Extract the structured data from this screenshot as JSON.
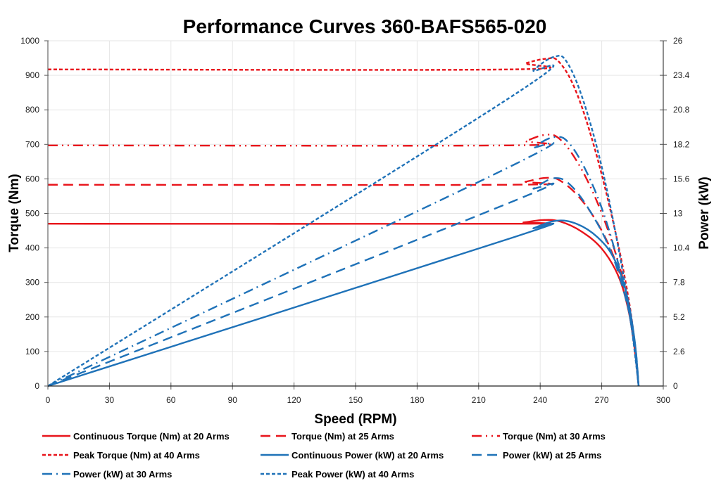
{
  "chart_data": {
    "type": "line",
    "title": "Performance Curves 360-BAFS565-020",
    "xlabel": "Speed (RPM)",
    "ylabel": "Torque (Nm)",
    "y2label": "Power (kW)",
    "xlim": [
      0,
      300
    ],
    "ylim": [
      0,
      1000
    ],
    "y2lim": [
      0,
      26
    ],
    "xticks": [
      "0",
      "30",
      "60",
      "90",
      "120",
      "150",
      "180",
      "210",
      "240",
      "270",
      "300"
    ],
    "yticks": [
      "0",
      "100",
      "200",
      "300",
      "400",
      "500",
      "600",
      "700",
      "800",
      "900",
      "1000"
    ],
    "y2ticks": [
      "0",
      "2.6",
      "5.2",
      "7.8",
      "10.4",
      "13",
      "15.6",
      "18.2",
      "20.8",
      "23.4",
      "26"
    ],
    "grid": true,
    "legend_position": "bottom",
    "series": [
      {
        "name": "Continuous Torque (Nm) at 20 Arms",
        "axis": "left",
        "color": "#e8141b",
        "dash": "solid",
        "x": [
          0,
          225,
          232,
          242,
          250,
          260,
          270,
          278,
          283,
          286,
          288
        ],
        "y": [
          470,
          470,
          474,
          481,
          476,
          448,
          398,
          320,
          220,
          110,
          0
        ]
      },
      {
        "name": "Torque (Nm) at 25 Arms",
        "axis": "left",
        "color": "#e8141b",
        "dash": "longdash",
        "x": [
          0,
          225,
          233,
          243,
          250,
          260,
          270,
          278,
          283,
          286,
          288
        ],
        "y": [
          583,
          583,
          592,
          603,
          594,
          540,
          450,
          340,
          230,
          115,
          0
        ]
      },
      {
        "name": "Torque (Nm) at 30 Arms",
        "axis": "left",
        "color": "#e8141b",
        "dash": "dashdotdot",
        "x": [
          0,
          225,
          233,
          242,
          249,
          258,
          268,
          277,
          283,
          286,
          288
        ],
        "y": [
          697,
          697,
          710,
          727,
          718,
          650,
          530,
          380,
          240,
          120,
          0
        ]
      },
      {
        "name": "Peak Torque (Nm) at 40 Arms",
        "axis": "left",
        "color": "#e8141b",
        "dash": "shortdash",
        "x": [
          0,
          225,
          233,
          243,
          249,
          257,
          266,
          275,
          282,
          286,
          288
        ],
        "y": [
          917,
          917,
          935,
          948,
          940,
          860,
          700,
          490,
          290,
          130,
          0
        ]
      },
      {
        "name": "Continuous Power (kW) at 20 Arms",
        "axis": "right",
        "color": "#1f72b8",
        "dash": "solid",
        "x": [
          0,
          225,
          237,
          248,
          258,
          268,
          276,
          282,
          286,
          288
        ],
        "y": [
          0,
          11.1,
          11.9,
          12.45,
          12.2,
          11.2,
          9.6,
          7.0,
          3.5,
          0
        ]
      },
      {
        "name": "Power (kW) at 25 Arms",
        "axis": "right",
        "color": "#1f72b8",
        "dash": "longdash",
        "x": [
          0,
          225,
          237,
          247,
          255,
          265,
          274,
          281,
          286,
          288
        ],
        "y": [
          0,
          13.8,
          14.9,
          15.65,
          15.1,
          13.0,
          10.3,
          7.0,
          3.4,
          0
        ]
      },
      {
        "name": "Power (kW) at 30 Arms",
        "axis": "right",
        "color": "#1f72b8",
        "dash": "dashdot",
        "x": [
          0,
          225,
          237,
          247,
          254,
          263,
          272,
          280,
          285,
          288
        ],
        "y": [
          0,
          16.5,
          18.0,
          18.75,
          18.3,
          16.0,
          12.5,
          8.0,
          4.0,
          0
        ]
      },
      {
        "name": "Peak Power (kW) at 40 Arms",
        "axis": "right",
        "color": "#1f72b8",
        "dash": "shortdash",
        "x": [
          0,
          225,
          237,
          247,
          253,
          261,
          270,
          278,
          284,
          288
        ],
        "y": [
          0,
          21.7,
          23.8,
          24.8,
          24.4,
          21.5,
          16.5,
          10.5,
          5.0,
          0
        ]
      }
    ]
  }
}
